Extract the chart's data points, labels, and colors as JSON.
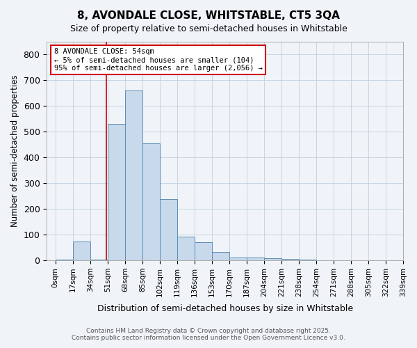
{
  "title1": "8, AVONDALE CLOSE, WHITSTABLE, CT5 3QA",
  "title2": "Size of property relative to semi-detached houses in Whitstable",
  "xlabel": "Distribution of semi-detached houses by size in Whitstable",
  "ylabel": "Number of semi-detached properties",
  "bin_labels": [
    "0sqm",
    "17sqm",
    "34sqm",
    "51sqm",
    "68sqm",
    "85sqm",
    "102sqm",
    "119sqm",
    "136sqm",
    "153sqm",
    "170sqm",
    "187sqm",
    "204sqm",
    "221sqm",
    "238sqm",
    "254sqm",
    "271sqm",
    "288sqm",
    "305sqm",
    "322sqm",
    "339sqm"
  ],
  "bar_heights": [
    4,
    73,
    2,
    530,
    660,
    455,
    237,
    93,
    70,
    32,
    10,
    10,
    8,
    5,
    4,
    1,
    0,
    0,
    0,
    0
  ],
  "bar_color": "#c8d9eb",
  "bar_edge_color": "#5a8db5",
  "red_line_x": 2.94,
  "annotation_text": "8 AVONDALE CLOSE: 54sqm\n← 5% of semi-detached houses are smaller (104)\n95% of semi-detached houses are larger (2,056) →",
  "annotation_box_color": "#ffffff",
  "annotation_edge_color": "#cc0000",
  "red_line_color": "#cc0000",
  "ylim": [
    0,
    850
  ],
  "yticks": [
    0,
    100,
    200,
    300,
    400,
    500,
    600,
    700,
    800
  ],
  "footer1": "Contains HM Land Registry data © Crown copyright and database right 2025.",
  "footer2": "Contains public sector information licensed under the Open Government Licence v3.0.",
  "background_color": "#f0f4f8",
  "plot_background": "#f0f4f8"
}
